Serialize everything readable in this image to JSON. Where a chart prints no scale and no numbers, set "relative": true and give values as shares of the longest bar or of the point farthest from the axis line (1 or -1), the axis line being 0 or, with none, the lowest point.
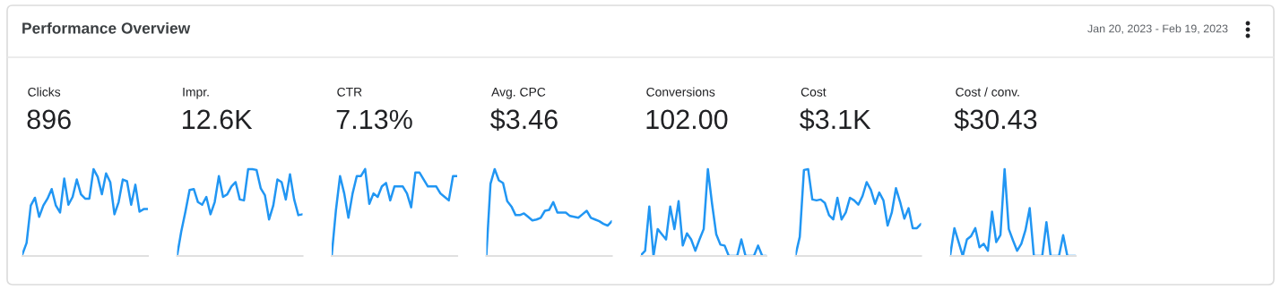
{
  "chart_data": [
    {
      "type": "other",
      "title": "Performance Overview",
      "annotations": [
        "Jan 20, 2023 - Feb 19, 2023"
      ]
    },
    {
      "type": "line",
      "title": "Clicks",
      "subtitle": "896",
      "relative": true,
      "categories": [
        null,
        null,
        null,
        null,
        null,
        null,
        null,
        null,
        null,
        null,
        null,
        null,
        null,
        null,
        null,
        null,
        null,
        null,
        null,
        null,
        null,
        null,
        null,
        null,
        null,
        null,
        null,
        null,
        null,
        null,
        null
      ],
      "series": [
        {
          "color": "#2196f3",
          "values": [
            0.02,
            0.15,
            0.58,
            0.67,
            0.45,
            0.58,
            0.66,
            0.77,
            0.58,
            0.5,
            0.89,
            0.59,
            0.68,
            0.88,
            0.71,
            0.66,
            0.66,
            1.0,
            0.91,
            0.71,
            0.95,
            0.85,
            0.48,
            0.62,
            0.88,
            0.86,
            0.59,
            0.82,
            0.51,
            0.54,
            0.54
          ]
        }
      ]
    },
    {
      "type": "line",
      "title": "Impr.",
      "subtitle": "12.6K",
      "relative": true,
      "categories": [
        null,
        null,
        null,
        null,
        null,
        null,
        null,
        null,
        null,
        null,
        null,
        null,
        null,
        null,
        null,
        null,
        null,
        null,
        null,
        null,
        null,
        null,
        null,
        null,
        null,
        null,
        null,
        null,
        null,
        null,
        null
      ],
      "series": [
        {
          "color": "#2196f3",
          "values": [
            0,
            0.28,
            0.51,
            0.76,
            0.77,
            0.62,
            0.59,
            0.68,
            0.48,
            0.62,
            0.92,
            0.68,
            0.71,
            0.8,
            0.85,
            0.65,
            0.64,
            1.0,
            1.0,
            0.99,
            0.78,
            0.7,
            0.42,
            0.58,
            0.88,
            0.85,
            0.65,
            0.94,
            0.65,
            0.47,
            0.48
          ]
        }
      ]
    },
    {
      "type": "line",
      "title": "CTR",
      "subtitle": "7.13%",
      "relative": true,
      "categories": [
        null,
        null,
        null,
        null,
        null,
        null,
        null,
        null,
        null,
        null,
        null,
        null,
        null,
        null,
        null,
        null,
        null,
        null,
        null,
        null,
        null,
        null,
        null,
        null,
        null,
        null,
        null,
        null,
        null,
        null,
        null
      ],
      "series": [
        {
          "color": "#2196f3",
          "values": [
            0,
            0.52,
            0.92,
            0.72,
            0.44,
            0.72,
            0.92,
            0.92,
            1.0,
            0.6,
            0.72,
            0.68,
            0.8,
            0.84,
            0.64,
            0.8,
            0.8,
            0.8,
            0.72,
            0.56,
            0.96,
            0.96,
            0.88,
            0.8,
            0.8,
            0.8,
            0.72,
            0.68,
            0.64,
            0.92,
            0.92
          ]
        }
      ]
    },
    {
      "type": "line",
      "title": "Avg. CPC",
      "subtitle": "$3.46",
      "relative": true,
      "categories": [
        null,
        null,
        null,
        null,
        null,
        null,
        null,
        null,
        null,
        null,
        null,
        null,
        null,
        null,
        null,
        null,
        null,
        null,
        null,
        null,
        null,
        null,
        null,
        null,
        null,
        null,
        null,
        null,
        null,
        null,
        null
      ],
      "series": [
        {
          "color": "#2196f3",
          "values": [
            0,
            0.83,
            1.0,
            0.87,
            0.84,
            0.63,
            0.57,
            0.47,
            0.47,
            0.49,
            0.45,
            0.41,
            0.42,
            0.44,
            0.52,
            0.53,
            0.62,
            0.5,
            0.5,
            0.5,
            0.46,
            0.45,
            0.44,
            0.48,
            0.52,
            0.44,
            0.42,
            0.4,
            0.37,
            0.35,
            0.4
          ]
        }
      ]
    },
    {
      "type": "line",
      "title": "Conversions",
      "subtitle": "102.00",
      "relative": true,
      "categories": [
        null,
        null,
        null,
        null,
        null,
        null,
        null,
        null,
        null,
        null,
        null,
        null,
        null,
        null,
        null,
        null,
        null,
        null,
        null,
        null,
        null,
        null,
        null,
        null,
        null,
        null,
        null,
        null,
        null,
        null,
        null
      ],
      "series": [
        {
          "color": "#2196f3",
          "values": [
            0.01,
            0.06,
            0.57,
            0,
            0.31,
            0.25,
            0.19,
            0.57,
            0.31,
            0.63,
            0.12,
            0.26,
            0.19,
            0.06,
            0.19,
            0.31,
            1.0,
            0.6,
            0.25,
            0.13,
            0.12,
            0,
            0,
            0,
            0.19,
            0,
            0,
            0,
            0.12,
            0,
            0
          ]
        }
      ]
    },
    {
      "type": "line",
      "title": "Cost",
      "subtitle": "$3.1K",
      "relative": true,
      "categories": [
        null,
        null,
        null,
        null,
        null,
        null,
        null,
        null,
        null,
        null,
        null,
        null,
        null,
        null,
        null,
        null,
        null,
        null,
        null,
        null,
        null,
        null,
        null,
        null,
        null,
        null,
        null,
        null,
        null,
        null,
        null
      ],
      "series": [
        {
          "color": "#2196f3",
          "values": [
            0.01,
            0.22,
            0.99,
            1.0,
            0.65,
            0.64,
            0.65,
            0.61,
            0.47,
            0.42,
            0.67,
            0.42,
            0.5,
            0.67,
            0.64,
            0.59,
            0.69,
            0.85,
            0.76,
            0.6,
            0.73,
            0.64,
            0.35,
            0.5,
            0.78,
            0.62,
            0.43,
            0.55,
            0.32,
            0.32,
            0.37
          ]
        }
      ]
    },
    {
      "type": "line",
      "title": "Cost / conv.",
      "subtitle": "$30.43",
      "relative": true,
      "categories": [
        null,
        null,
        null,
        null,
        null,
        null,
        null,
        null,
        null,
        null,
        null,
        null,
        null,
        null,
        null,
        null,
        null,
        null,
        null,
        null,
        null,
        null,
        null,
        null,
        null,
        null,
        null,
        null,
        null,
        null,
        null
      ],
      "series": [
        {
          "color": "#2196f3",
          "values": [
            0.01,
            0.32,
            0.16,
            0,
            0.19,
            0.23,
            0.32,
            0.1,
            0.14,
            0.06,
            0.51,
            0.16,
            0.24,
            1.0,
            0.31,
            0.18,
            0.06,
            0.14,
            0.3,
            0.55,
            0,
            0,
            0,
            0.39,
            0,
            0,
            0,
            0.24,
            0,
            0,
            0
          ]
        }
      ]
    }
  ]
}
